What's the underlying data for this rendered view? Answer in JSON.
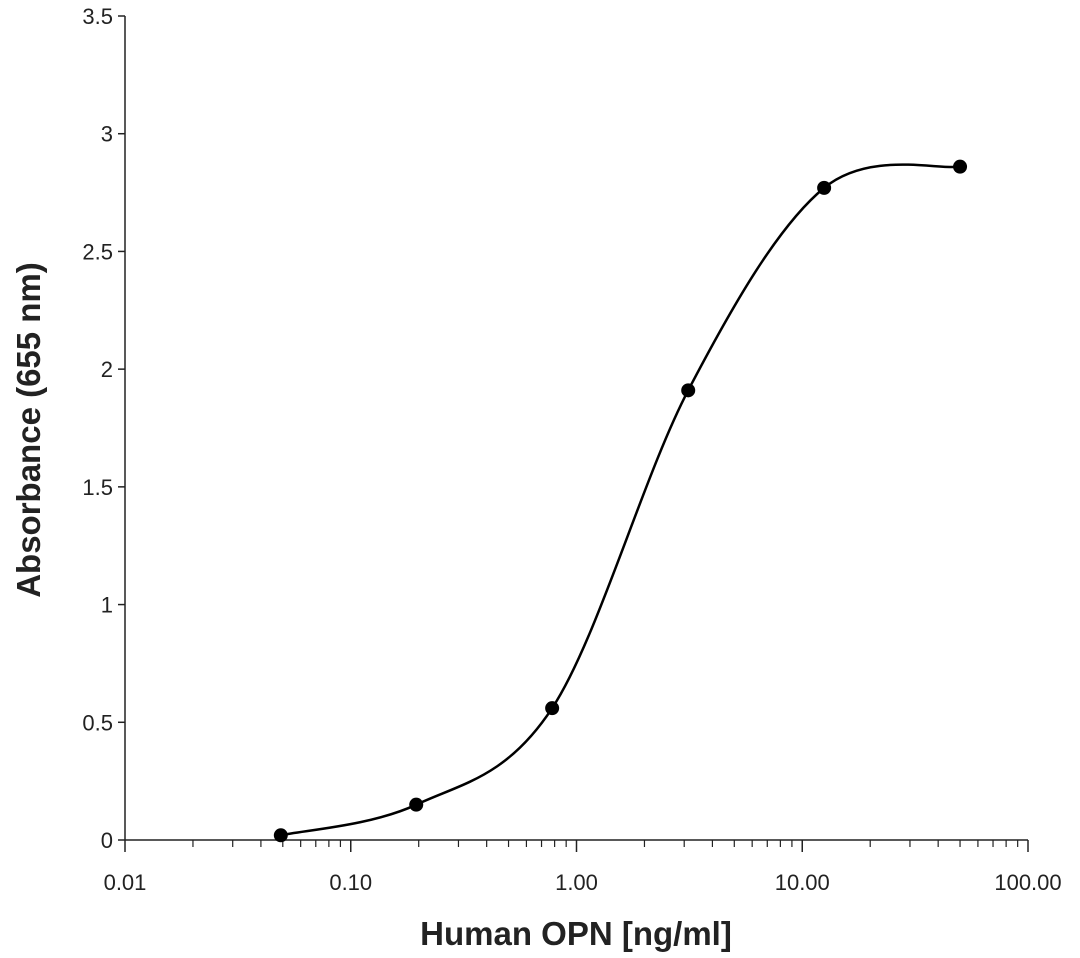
{
  "chart_data": {
    "type": "scatter",
    "title": "",
    "xlabel": "Human OPN [ng/ml]",
    "ylabel": "Absorbance (655 nm)",
    "x_scale": "log",
    "xlim": [
      0.01,
      100
    ],
    "ylim": [
      0,
      3.5
    ],
    "x_ticks": [
      0.01,
      0.1,
      1,
      10,
      100
    ],
    "x_tick_labels": [
      "0.01",
      "0.10",
      "1.00",
      "10.00",
      "100.00"
    ],
    "y_ticks": [
      0,
      0.5,
      1,
      1.5,
      2,
      2.5,
      3,
      3.5
    ],
    "y_tick_labels": [
      "0",
      "0.5",
      "1",
      "1.5",
      "2",
      "2.5",
      "3",
      "3.5"
    ],
    "grid": false,
    "legend": "none",
    "line_style": "smoothed",
    "series": [
      {
        "x": [
          0.049,
          0.195,
          0.78,
          3.125,
          12.5,
          50
        ],
        "y": [
          0.02,
          0.15,
          0.56,
          1.91,
          2.77,
          2.86
        ]
      }
    ],
    "colors": {
      "line": "#000000",
      "marker": "#000000",
      "axis": "#222222"
    }
  }
}
